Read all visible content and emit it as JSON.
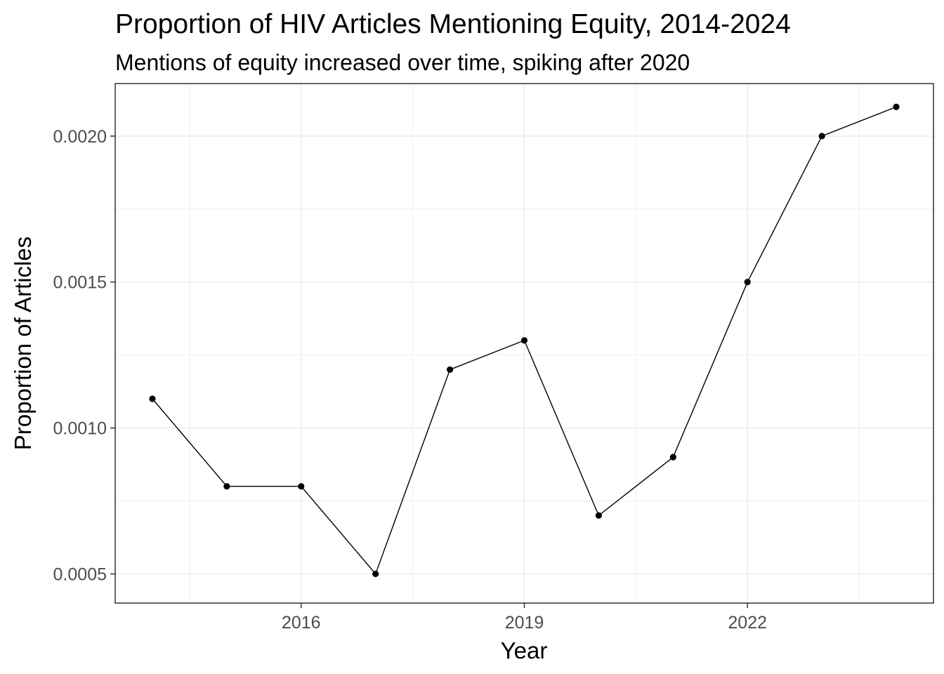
{
  "chart_data": {
    "type": "line",
    "title": "Proportion of HIV Articles Mentioning Equity, 2014-2024",
    "subtitle": "Mentions of equity increased over time, spiking after 2020",
    "xlabel": "Year",
    "ylabel": "Proportion of Articles",
    "x": [
      2014,
      2015,
      2016,
      2017,
      2018,
      2019,
      2020,
      2021,
      2022,
      2023,
      2024
    ],
    "values": [
      0.0011,
      0.0008,
      0.0008,
      0.0005,
      0.0012,
      0.0013,
      0.0007,
      0.0009,
      0.0015,
      0.002,
      0.0021
    ],
    "xticks": [
      2016,
      2019,
      2022
    ],
    "xtick_labels": [
      "2016",
      "2019",
      "2022"
    ],
    "yticks": [
      0.0005,
      0.001,
      0.0015,
      0.002
    ],
    "ytick_labels": [
      "0.0005",
      "0.0010",
      "0.0015",
      "0.0020"
    ],
    "xlim": [
      2013.5,
      2024.5
    ],
    "ylim": [
      0.0004,
      0.00218
    ],
    "grid": true,
    "legend": "none",
    "colors": {
      "line": "#000000",
      "point": "#000000",
      "grid": "#ebebeb",
      "panel_border": "#333333",
      "tick_label": "#4d4d4d"
    }
  }
}
